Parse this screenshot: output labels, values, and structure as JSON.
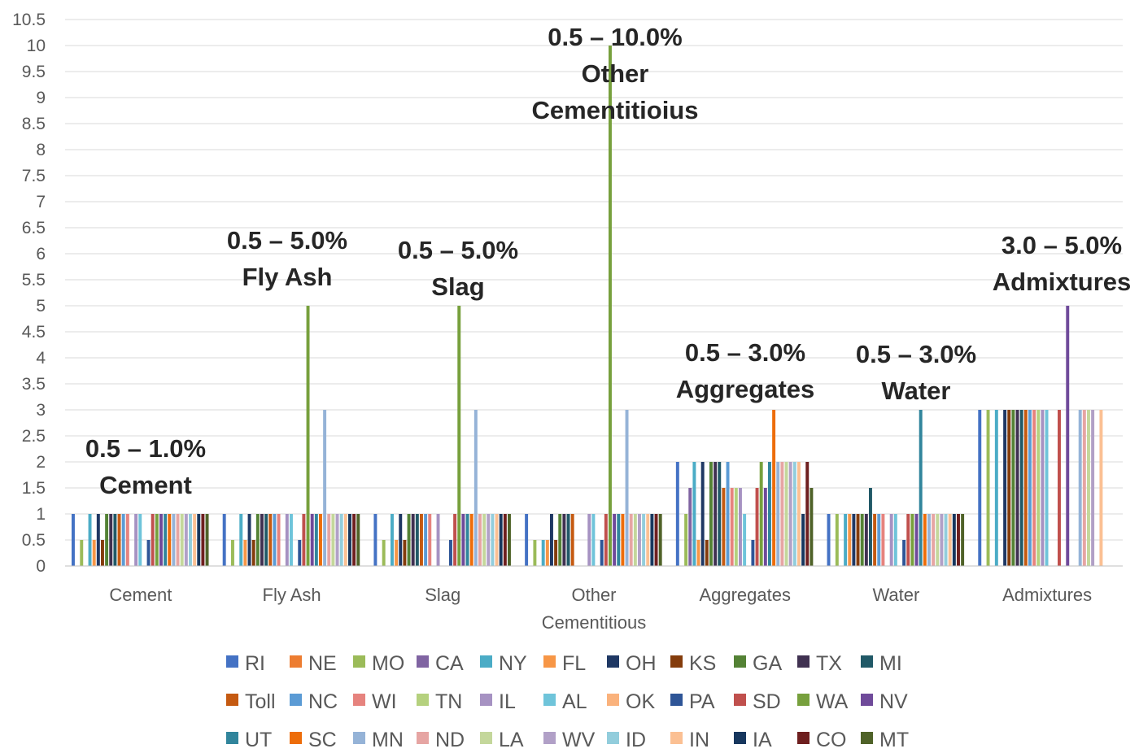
{
  "chart_data": {
    "type": "bar",
    "title": "",
    "xlabel": "",
    "ylabel": "",
    "ylim": [
      0,
      10.5
    ],
    "y_ticks": [
      "0",
      "0.5",
      "1",
      "1.5",
      "2",
      "2.5",
      "3",
      "3.5",
      "4",
      "4.5",
      "5",
      "5.5",
      "6",
      "6.5",
      "7",
      "7.5",
      "8",
      "8.5",
      "9",
      "9.5",
      "10",
      "10.5"
    ],
    "grid": true,
    "legend_position": "bottom",
    "categories": [
      "Cement",
      "Fly Ash",
      "Slag",
      "Other Cementitious",
      "Aggregates",
      "Water",
      "Admixtures"
    ],
    "category_label_lines": [
      [
        "Cement"
      ],
      [
        "Fly Ash"
      ],
      [
        "Slag"
      ],
      [
        "Other",
        "Cementitious"
      ],
      [
        "Aggregates"
      ],
      [
        "Water"
      ],
      [
        "Admixtures"
      ]
    ],
    "annotations": [
      {
        "category": "Cement",
        "lines": [
          "0.5 – 1.0%",
          "Cement"
        ]
      },
      {
        "category": "Fly Ash",
        "lines": [
          "0.5 – 5.0%",
          "Fly Ash"
        ]
      },
      {
        "category": "Slag",
        "lines": [
          "0.5 – 5.0%",
          "Slag"
        ]
      },
      {
        "category": "Other Cementitious",
        "lines": [
          "0.5 – 10.0%",
          "Other",
          "Cementitioius"
        ]
      },
      {
        "category": "Aggregates",
        "lines": [
          "0.5 – 3.0%",
          "Aggregates"
        ]
      },
      {
        "category": "Water",
        "lines": [
          "0.5 – 3.0%",
          "Water"
        ]
      },
      {
        "category": "Admixtures",
        "lines": [
          "3.0 – 5.0%",
          "Admixtures"
        ]
      }
    ],
    "series": [
      {
        "name": "RI",
        "color": "#4472c4",
        "values": [
          1,
          1,
          1,
          1,
          2,
          1,
          3
        ]
      },
      {
        "name": "NE",
        "color": "#ed7d31",
        "values": [
          0,
          0,
          0,
          0,
          0,
          0,
          0
        ]
      },
      {
        "name": "MO",
        "color": "#9bbb59",
        "values": [
          0.5,
          0.5,
          0.5,
          0.5,
          1,
          1,
          3
        ]
      },
      {
        "name": "CA",
        "color": "#8064a2",
        "values": [
          0,
          0,
          0,
          0,
          1.5,
          0,
          0
        ]
      },
      {
        "name": "NY",
        "color": "#4bacc6",
        "values": [
          1,
          1,
          1,
          0.5,
          2,
          1,
          3
        ]
      },
      {
        "name": "FL",
        "color": "#f79646",
        "values": [
          0.5,
          0.5,
          0.5,
          0.5,
          0.5,
          1,
          0
        ]
      },
      {
        "name": "OH",
        "color": "#1f3864",
        "values": [
          1,
          1,
          1,
          1,
          2,
          1,
          3
        ]
      },
      {
        "name": "KS",
        "color": "#843c0c",
        "values": [
          0.5,
          0.5,
          0.5,
          0.5,
          0.5,
          1,
          3
        ]
      },
      {
        "name": "GA",
        "color": "#548235",
        "values": [
          1,
          1,
          1,
          1,
          2,
          1,
          3
        ]
      },
      {
        "name": "TX",
        "color": "#403151",
        "values": [
          1,
          1,
          1,
          1,
          2,
          1,
          3
        ]
      },
      {
        "name": "MI",
        "color": "#215967",
        "values": [
          1,
          1,
          1,
          1,
          2,
          1.5,
          3
        ]
      },
      {
        "name": "Toll",
        "color": "#c55a11",
        "values": [
          1,
          1,
          1,
          1,
          1.5,
          1,
          3
        ]
      },
      {
        "name": "NC",
        "color": "#5b9bd5",
        "values": [
          1,
          1,
          1,
          0,
          2,
          1,
          3
        ]
      },
      {
        "name": "WI",
        "color": "#e6837e",
        "values": [
          1,
          1,
          1,
          0,
          1.5,
          1,
          3
        ]
      },
      {
        "name": "TN",
        "color": "#b5d17e",
        "values": [
          0,
          0,
          0,
          0,
          1.5,
          0,
          3
        ]
      },
      {
        "name": "IL",
        "color": "#a692c2",
        "values": [
          1,
          1,
          1,
          1,
          1.5,
          1,
          3
        ]
      },
      {
        "name": "AL",
        "color": "#6fc4da",
        "values": [
          1,
          1,
          0,
          1,
          1,
          1,
          3
        ]
      },
      {
        "name": "OK",
        "color": "#fab27c",
        "values": [
          0,
          0,
          0,
          0,
          0,
          0,
          0
        ]
      },
      {
        "name": "PA",
        "color": "#2e5597",
        "values": [
          0.5,
          0.5,
          0.5,
          0.5,
          0.5,
          0.5,
          0
        ]
      },
      {
        "name": "SD",
        "color": "#c0504d",
        "values": [
          1,
          1,
          1,
          1,
          1.5,
          1,
          3
        ]
      },
      {
        "name": "WA",
        "color": "#77a03d",
        "values": [
          1,
          5,
          5,
          10,
          2,
          1,
          0
        ]
      },
      {
        "name": "NV",
        "color": "#6f4a9a",
        "values": [
          1,
          1,
          1,
          1,
          1.5,
          1,
          5
        ]
      },
      {
        "name": "UT",
        "color": "#31859c",
        "values": [
          1,
          1,
          1,
          1,
          2,
          3,
          0
        ]
      },
      {
        "name": "SC",
        "color": "#ed6d0a",
        "values": [
          1,
          1,
          1,
          1,
          3,
          1,
          0
        ]
      },
      {
        "name": "MN",
        "color": "#95b3d7",
        "values": [
          1,
          3,
          3,
          3,
          2,
          1,
          3
        ]
      },
      {
        "name": "ND",
        "color": "#e6a5a3",
        "values": [
          1,
          1,
          1,
          1,
          2,
          1,
          3
        ]
      },
      {
        "name": "LA",
        "color": "#c4d79b",
        "values": [
          1,
          1,
          1,
          1,
          2,
          1,
          3
        ]
      },
      {
        "name": "WV",
        "color": "#b1a0c7",
        "values": [
          1,
          1,
          1,
          1,
          2,
          1,
          3
        ]
      },
      {
        "name": "ID",
        "color": "#92cddc",
        "values": [
          1,
          1,
          1,
          1,
          2,
          1,
          0
        ]
      },
      {
        "name": "IN",
        "color": "#fbc093",
        "values": [
          1,
          1,
          1,
          1,
          2,
          1,
          3
        ]
      },
      {
        "name": "IA",
        "color": "#17375e",
        "values": [
          1,
          1,
          1,
          1,
          1,
          1,
          0
        ]
      },
      {
        "name": "CO",
        "color": "#6e1f1f",
        "values": [
          1,
          1,
          1,
          1,
          2,
          1,
          0
        ]
      },
      {
        "name": "MT",
        "color": "#4f6228",
        "values": [
          1,
          1,
          1,
          1,
          1.5,
          1,
          0
        ]
      }
    ]
  }
}
